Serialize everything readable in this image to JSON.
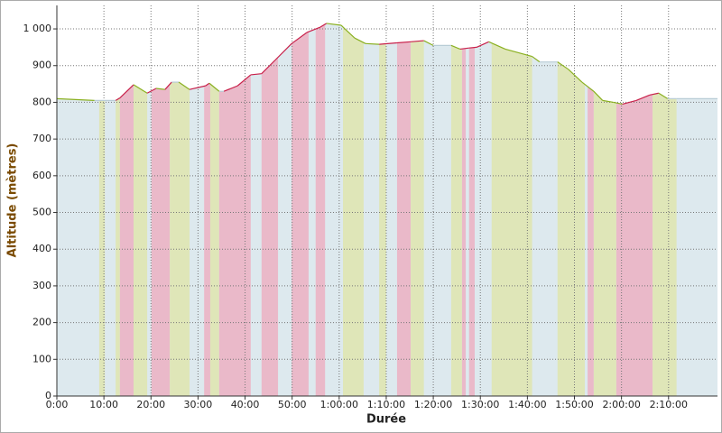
{
  "chart_data": {
    "type": "area-profile",
    "x_label": "Durée",
    "y_label": "Altitude (mètres)",
    "xlim": [
      0,
      140.4
    ],
    "ylim": [
      0,
      1064
    ],
    "xticks": [
      {
        "value": 0,
        "label": "0:00"
      },
      {
        "value": 10,
        "label": "10:00"
      },
      {
        "value": 20,
        "label": "20:00"
      },
      {
        "value": 30,
        "label": "30:00"
      },
      {
        "value": 40,
        "label": "40:00"
      },
      {
        "value": 50,
        "label": "50:00"
      },
      {
        "value": 60,
        "label": "1:00:00"
      },
      {
        "value": 70,
        "label": "1:10:00"
      },
      {
        "value": 80,
        "label": "1:20:00"
      },
      {
        "value": 90,
        "label": "1:30:00"
      },
      {
        "value": 100,
        "label": "1:40:00"
      },
      {
        "value": 110,
        "label": "1:50:00"
      },
      {
        "value": 120,
        "label": "2:00:00"
      },
      {
        "value": 130,
        "label": "2:10:00"
      }
    ],
    "yticks": [
      0,
      100,
      200,
      300,
      400,
      500,
      600,
      700,
      800,
      900,
      {
        "value": 1000,
        "label": "1 000"
      }
    ],
    "grid": true,
    "fill_color": "#dde9ee",
    "line_colors": {
      "up": "#c8204a",
      "down": "#8ab020",
      "flat": "#b8ccd6"
    },
    "series": [
      {
        "x": [
          0,
          8,
          12.5,
          13.4,
          16.3,
          19.2,
          21.1,
          23,
          24.4,
          25.9,
          28.2,
          31.6,
          32.4,
          34.5,
          35.5,
          38.4,
          41.2,
          43.5,
          46.4,
          49.9,
          53.1,
          56,
          57.3,
          60.4,
          63.3,
          65.6,
          68.5,
          72.3,
          75.2,
          78,
          80,
          83.8,
          85.7,
          87.6,
          89.2,
          91.8,
          95.3,
          101,
          102.6,
          106.4,
          108.7,
          111.6,
          114.1,
          116,
          118.3,
          120.2,
          123.1,
          126,
          127.9,
          129.8,
          131.7,
          140.4
        ],
        "values": [
          810,
          805,
          805,
          812,
          848,
          825,
          838,
          835,
          855,
          855,
          835,
          845,
          852,
          830,
          830,
          845,
          875,
          878,
          915,
          960,
          990,
          1005,
          1015,
          1010,
          975,
          960,
          958,
          962,
          965,
          968,
          955,
          955,
          945,
          948,
          950,
          965,
          945,
          925,
          910,
          910,
          890,
          855,
          830,
          805,
          800,
          795,
          805,
          820,
          825,
          810,
          810,
          810
        ]
      }
    ],
    "bands": [
      {
        "start": 9.0,
        "end": 10.2,
        "color": "#dfe6b8"
      },
      {
        "start": 12.5,
        "end": 13.4,
        "color": "#dfe6b8"
      },
      {
        "start": 13.4,
        "end": 16.3,
        "color": "#eab9c9"
      },
      {
        "start": 16.3,
        "end": 19.2,
        "color": "#dfe6b8"
      },
      {
        "start": 20.1,
        "end": 24,
        "color": "#eab9c9"
      },
      {
        "start": 24,
        "end": 28.2,
        "color": "#dfe6b8"
      },
      {
        "start": 31.3,
        "end": 32.6,
        "color": "#eab9c9"
      },
      {
        "start": 32.6,
        "end": 34.5,
        "color": "#dfe6b8"
      },
      {
        "start": 34.5,
        "end": 41.2,
        "color": "#eab9c9"
      },
      {
        "start": 43.5,
        "end": 47,
        "color": "#eab9c9"
      },
      {
        "start": 49.9,
        "end": 53.5,
        "color": "#eab9c9"
      },
      {
        "start": 55,
        "end": 57,
        "color": "#eab9c9"
      },
      {
        "start": 60.8,
        "end": 65.2,
        "color": "#dfe6b8"
      },
      {
        "start": 68.5,
        "end": 70,
        "color": "#dfe6b8"
      },
      {
        "start": 72.3,
        "end": 75.2,
        "color": "#eab9c9"
      },
      {
        "start": 75.2,
        "end": 78,
        "color": "#dfe6b8"
      },
      {
        "start": 83.8,
        "end": 86.1,
        "color": "#dfe6b8"
      },
      {
        "start": 86.1,
        "end": 86.9,
        "color": "#eab9c9"
      },
      {
        "start": 87.6,
        "end": 88.8,
        "color": "#eab9c9"
      },
      {
        "start": 92.4,
        "end": 101,
        "color": "#dfe6b8"
      },
      {
        "start": 106.4,
        "end": 112.2,
        "color": "#dfe6b8"
      },
      {
        "start": 112.8,
        "end": 114.1,
        "color": "#eab9c9"
      },
      {
        "start": 114.1,
        "end": 118.9,
        "color": "#dfe6b8"
      },
      {
        "start": 118.9,
        "end": 126.6,
        "color": "#eab9c9"
      },
      {
        "start": 126.6,
        "end": 131.7,
        "color": "#dfe6b8"
      }
    ]
  }
}
